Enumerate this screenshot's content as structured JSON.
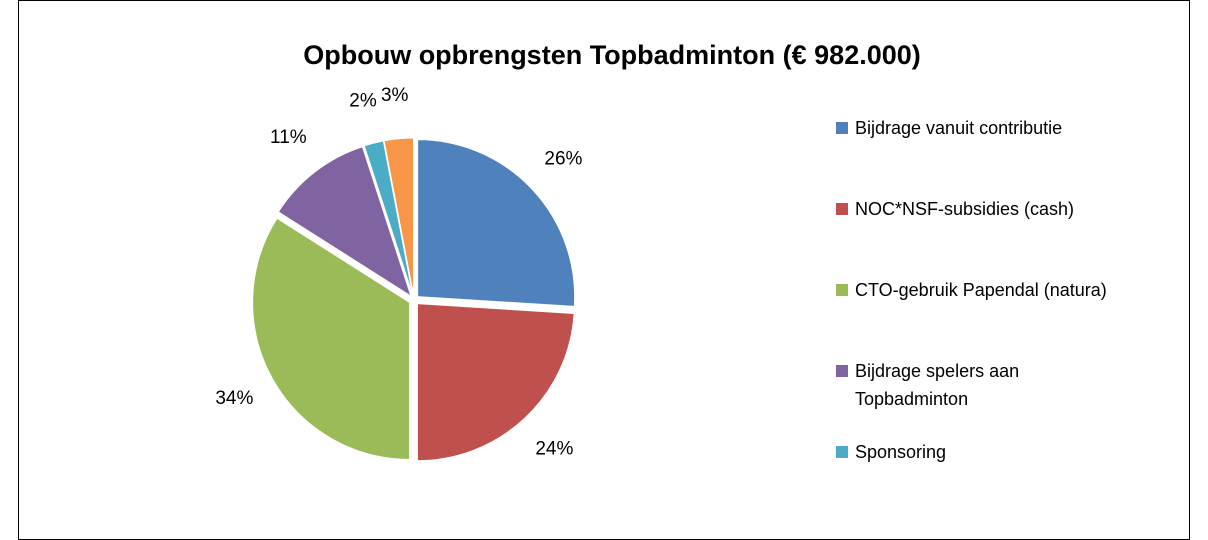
{
  "chart_data": {
    "type": "pie",
    "title": "Opbouw opbrengsten Topbadminton (€ 982.000)",
    "categories": [
      "Bijdrage vanuit contributie",
      "NOC*NSF-subsidies (cash)",
      "CTO-gebruik Papendal (natura)",
      "Bijdrage spelers aan Topbadminton",
      "Sponsoring",
      null
    ],
    "values": [
      26,
      24,
      34,
      11,
      2,
      3
    ],
    "value_labels": [
      "26%",
      "24%",
      "34%",
      "11%",
      "2%",
      "3%"
    ],
    "colors": [
      "#4f81bd",
      "#c0504d",
      "#9bbb59",
      "#8064a2",
      "#4bacc6",
      "#f79646"
    ],
    "legend": "right"
  }
}
